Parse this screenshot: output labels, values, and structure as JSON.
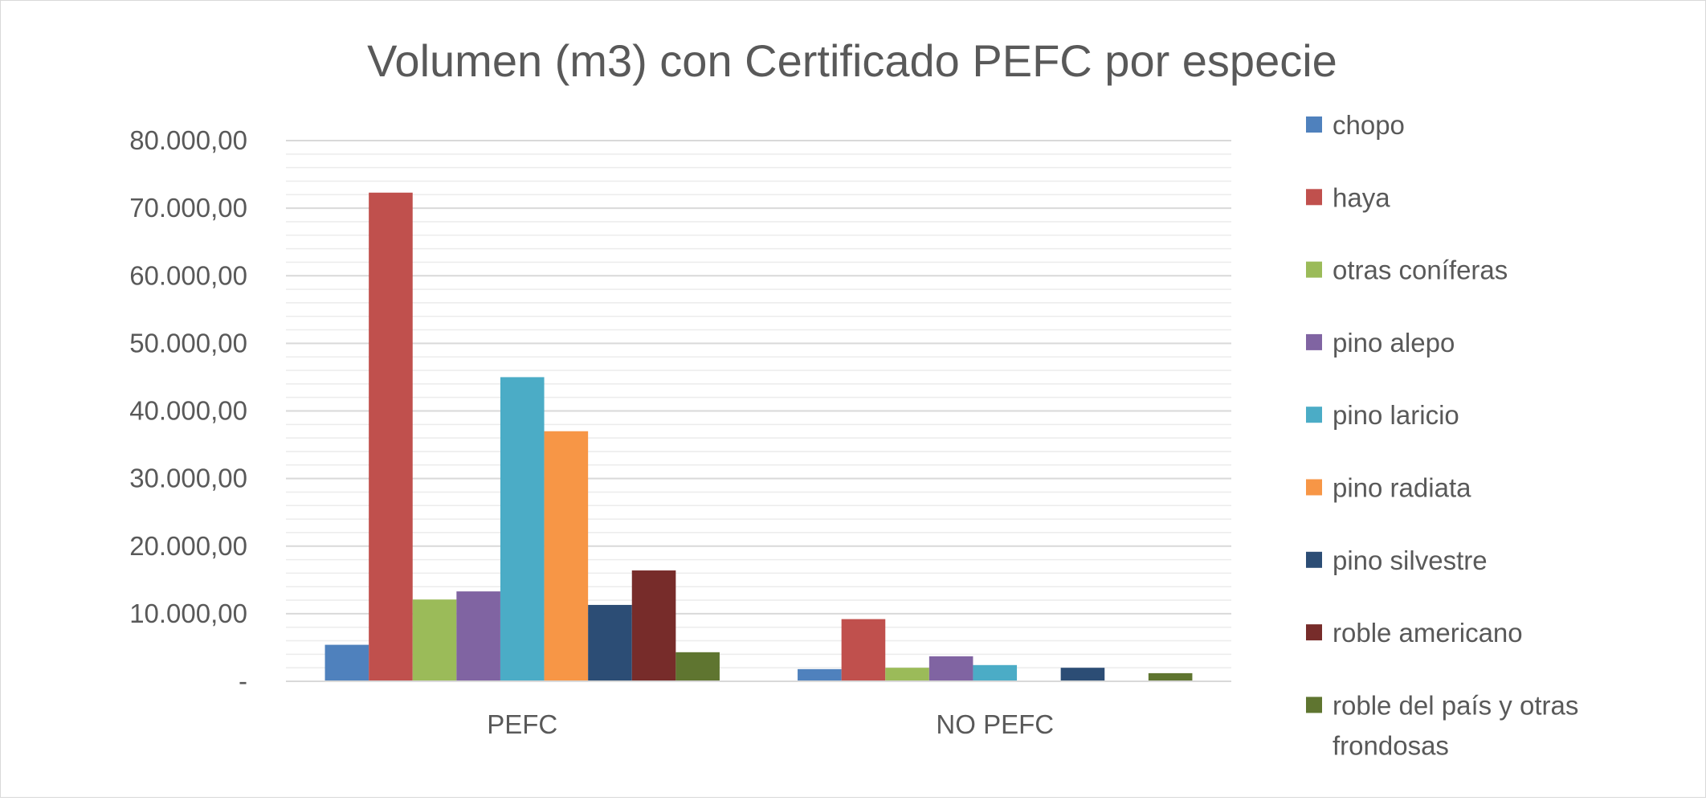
{
  "chart_data": {
    "type": "bar",
    "title": "Volumen (m3) con Certificado PEFC por especie",
    "xlabel": "",
    "ylabel": "",
    "categories": [
      "PEFC",
      "NO PEFC"
    ],
    "ylim": [
      0,
      80000
    ],
    "yticks": [
      0,
      10000,
      20000,
      30000,
      40000,
      50000,
      60000,
      70000,
      80000
    ],
    "ytick_labels": [
      "-",
      "10.000,00",
      "20.000,00",
      "30.000,00",
      "40.000,00",
      "50.000,00",
      "60.000,00",
      "70.000,00",
      "80.000,00"
    ],
    "grid": true,
    "legend_position": "right",
    "series": [
      {
        "name": "chopo",
        "color": "#4F81BD",
        "values": [
          5400,
          1800
        ]
      },
      {
        "name": "haya",
        "color": "#C0504D",
        "values": [
          72300,
          9200
        ]
      },
      {
        "name": "otras coníferas",
        "color": "#9BBB59",
        "values": [
          12100,
          2000
        ]
      },
      {
        "name": "pino alepo",
        "color": "#8064A2",
        "values": [
          13300,
          3700
        ]
      },
      {
        "name": "pino laricio",
        "color": "#4BACC6",
        "values": [
          45000,
          2400
        ]
      },
      {
        "name": "pino radiata",
        "color": "#F79646",
        "values": [
          37000,
          0
        ]
      },
      {
        "name": "pino silvestre",
        "color": "#2C4D75",
        "values": [
          11300,
          2000
        ]
      },
      {
        "name": "roble americano",
        "color": "#772C2A",
        "values": [
          16400,
          0
        ]
      },
      {
        "name": "roble del país y otras frondosas",
        "legend_lines": [
          "roble del país y otras",
          "frondosas"
        ],
        "color": "#5F7530",
        "values": [
          4300,
          1200
        ]
      }
    ]
  }
}
